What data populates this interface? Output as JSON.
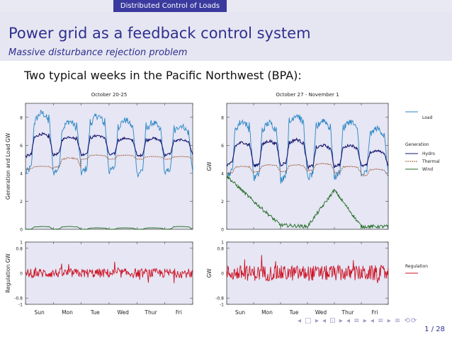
{
  "header": {
    "title": "Distributed Control of Loads"
  },
  "slide": {
    "title": "Power grid as a feedback control system",
    "subtitle": "Massive disturbance rejection problem",
    "intro": "Two typical weeks in the Pacific Northwest (BPA):"
  },
  "footer": {
    "nav": "◂ □ ▸ ◂ ⊡ ▸ ◂ ≡ ▸ ◂ ≡ ▸ ≡ ⟲⟳",
    "page": "1 / 28"
  },
  "colors": {
    "load": "#2a86c4",
    "hydro": "#16166f",
    "thermal": "#a0522d",
    "wind": "#1f6b1f",
    "regulation": "#cc1122",
    "fill": "#e6e6f4"
  },
  "chart_data": [
    {
      "type": "line",
      "title": "October 20-25",
      "ylabel": "Generation and Load  GW",
      "ylim": [
        0,
        9
      ],
      "yticks": [
        "0",
        "2",
        "4",
        "6",
        "8"
      ],
      "x_days": [
        "Sun",
        "Mon",
        "Tue",
        "Wed",
        "Thur",
        "Fri"
      ],
      "series": [
        {
          "key": "load",
          "daily_peak": [
            8.3,
            7.7,
            8.1,
            7.8,
            7.6,
            7.4
          ],
          "daily_trough": [
            4.0,
            4.0,
            4.0,
            4.1,
            3.9,
            4.0
          ]
        },
        {
          "key": "hydro",
          "daily_peak": [
            6.8,
            6.6,
            6.7,
            6.5,
            6.5,
            6.4
          ],
          "daily_trough": [
            5.2,
            5.3,
            5.3,
            5.3,
            5.2,
            5.3
          ]
        },
        {
          "key": "thermal",
          "daily_peak": [
            4.5,
            5.1,
            5.3,
            5.3,
            5.2,
            5.2
          ],
          "daily_trough": [
            4.3,
            4.4,
            5.0,
            5.0,
            5.0,
            5.0
          ]
        },
        {
          "key": "wind",
          "daily_peak": [
            0.2,
            0.2,
            0.1,
            0.1,
            0.1,
            0.2
          ],
          "daily_trough": [
            0.0,
            0.0,
            0.0,
            0.0,
            0.0,
            0.0
          ]
        }
      ]
    },
    {
      "type": "line",
      "title": "October 27 - November 1",
      "ylabel": "GW",
      "ylim": [
        0,
        9
      ],
      "yticks": [
        "0",
        "2",
        "4",
        "6",
        "8"
      ],
      "x_days": [
        "Sun",
        "Mon",
        "Tue",
        "Wed",
        "Thur",
        "Fri"
      ],
      "series": [
        {
          "key": "load",
          "daily_peak": [
            7.7,
            7.6,
            8.2,
            7.8,
            7.7,
            7.2
          ],
          "daily_trough": [
            3.8,
            3.6,
            3.5,
            3.6,
            3.7,
            3.8
          ]
        },
        {
          "key": "hydro",
          "daily_peak": [
            6.2,
            6.3,
            6.4,
            6.0,
            6.0,
            5.6
          ],
          "daily_trough": [
            4.6,
            4.5,
            4.6,
            4.4,
            4.5,
            4.5
          ]
        },
        {
          "key": "thermal",
          "daily_peak": [
            4.5,
            4.6,
            4.6,
            4.7,
            4.5,
            4.3
          ],
          "daily_trough": [
            4.0,
            4.1,
            4.1,
            4.2,
            4.0,
            3.8
          ]
        },
        {
          "key": "wind",
          "daily_value": [
            3.8,
            2.0,
            0.3,
            0.2,
            2.8,
            0.2
          ]
        }
      ]
    },
    {
      "type": "line",
      "ylabel": "Regulation  GW",
      "ylim": [
        -1,
        1
      ],
      "yticks": [
        "-1",
        "-0.8",
        "0",
        "0.8",
        "1"
      ],
      "x_days": [
        "Sun",
        "Mon",
        "Tue",
        "Wed",
        "Thur",
        "Fri"
      ],
      "series": [
        {
          "key": "regulation",
          "typical_amplitude": 0.15,
          "peak_amplitude": 0.4
        }
      ]
    },
    {
      "type": "line",
      "ylabel": "GW",
      "ylim": [
        -1,
        1
      ],
      "yticks": [
        "-1",
        "-0.8",
        "0",
        "0.8",
        "1"
      ],
      "x_days": [
        "Sun",
        "Mon",
        "Tue",
        "Wed",
        "Thur",
        "Fri"
      ],
      "series": [
        {
          "key": "regulation",
          "typical_amplitude": 0.25,
          "peak_amplitude": 0.7
        }
      ]
    }
  ],
  "legend": {
    "load": "Load",
    "generation_heading": "Generation",
    "hydro": "Hydro",
    "thermal": "Thermal",
    "wind": "Wind",
    "regulation": "Regulation"
  }
}
